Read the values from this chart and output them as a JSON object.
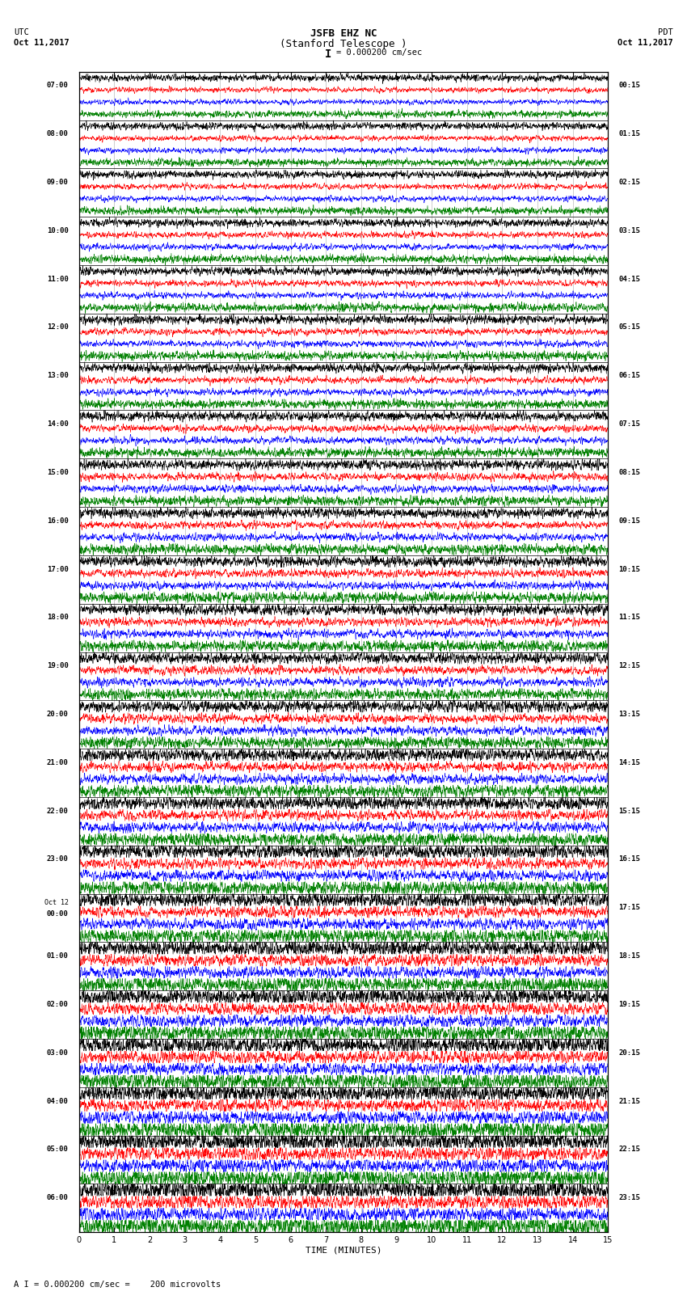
{
  "title_line1": "JSFB EHZ NC",
  "title_line2": "(Stanford Telescope )",
  "scale_text": "= 0.000200 cm/sec",
  "scale_bar": "I",
  "left_header_line1": "UTC",
  "left_header_line2": "Oct 11,2017",
  "right_header_line1": "PDT",
  "right_header_line2": "Oct 11,2017",
  "xlabel": "TIME (MINUTES)",
  "footer_text": "A I = 0.000200 cm/sec =    200 microvolts",
  "utc_times": [
    "07:00",
    "08:00",
    "09:00",
    "10:00",
    "11:00",
    "12:00",
    "13:00",
    "14:00",
    "15:00",
    "16:00",
    "17:00",
    "18:00",
    "19:00",
    "20:00",
    "21:00",
    "22:00",
    "23:00",
    "Oct 12",
    "00:00",
    "01:00",
    "02:00",
    "03:00",
    "04:00",
    "05:00",
    "06:00"
  ],
  "utc_is_date": [
    false,
    false,
    false,
    false,
    false,
    false,
    false,
    false,
    false,
    false,
    false,
    false,
    false,
    false,
    false,
    false,
    false,
    true,
    false,
    false,
    false,
    false,
    false,
    false,
    false
  ],
  "pdt_times": [
    "00:15",
    "01:15",
    "02:15",
    "03:15",
    "04:15",
    "05:15",
    "06:15",
    "07:15",
    "08:15",
    "09:15",
    "10:15",
    "11:15",
    "12:15",
    "13:15",
    "14:15",
    "15:15",
    "16:15",
    "17:15",
    "18:15",
    "19:15",
    "20:15",
    "21:15",
    "22:15",
    "23:15"
  ],
  "n_rows": 24,
  "traces_per_row": 4,
  "trace_colors": [
    "black",
    "red",
    "blue",
    "green"
  ],
  "background_color": "white",
  "x_min": 0,
  "x_max": 15,
  "x_ticks": [
    0,
    1,
    2,
    3,
    4,
    5,
    6,
    7,
    8,
    9,
    10,
    11,
    12,
    13,
    14,
    15
  ],
  "grid_color": "#aaaaaa",
  "n_points": 3000,
  "amp_early": 0.28,
  "amp_late": 0.44,
  "amp_transition_row": 12,
  "seed": 42
}
